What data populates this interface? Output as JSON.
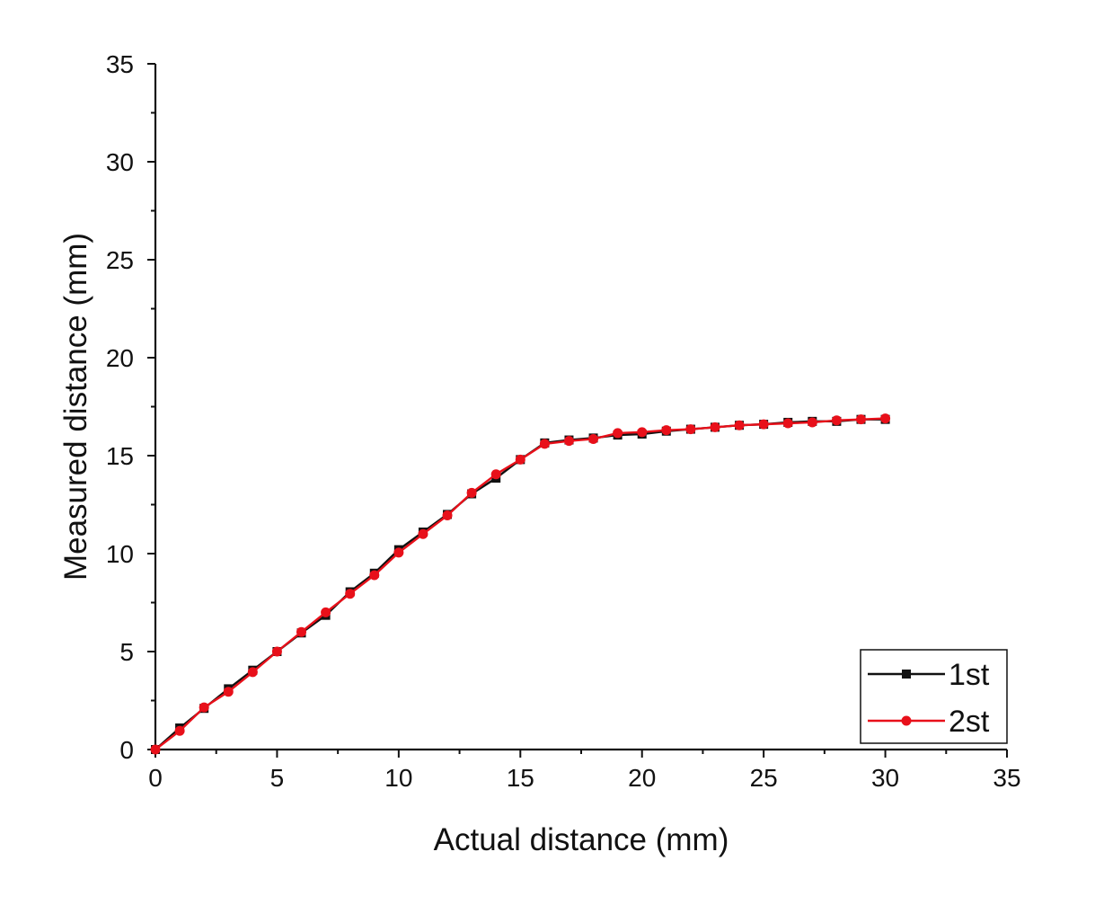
{
  "chart_data": {
    "type": "line",
    "title": "",
    "xlabel": "Actual distance (mm)",
    "ylabel": "Measured distance (mm)",
    "xlim": [
      0,
      35
    ],
    "ylim": [
      0,
      35
    ],
    "x_ticks": [
      "0",
      "5",
      "10",
      "15",
      "20",
      "25",
      "30",
      "35"
    ],
    "y_ticks": [
      "0",
      "5",
      "10",
      "15",
      "20",
      "25",
      "30",
      "35"
    ],
    "grid": false,
    "legend_position": "bottom-right",
    "series": [
      {
        "name": "1st",
        "color": "#111111",
        "marker": "square",
        "x": [
          0,
          1,
          2,
          3,
          4,
          5,
          6,
          7,
          8,
          9,
          10,
          11,
          12,
          13,
          14,
          15,
          16,
          17,
          18,
          19,
          20,
          21,
          22,
          23,
          24,
          25,
          26,
          27,
          28,
          29,
          30
        ],
        "y": [
          0,
          1.1,
          2.1,
          3.1,
          4.05,
          5.0,
          5.95,
          6.85,
          8.05,
          9.0,
          10.2,
          11.1,
          12.0,
          13.05,
          13.85,
          14.8,
          15.65,
          15.8,
          15.9,
          16.05,
          16.1,
          16.25,
          16.35,
          16.45,
          16.55,
          16.6,
          16.7,
          16.75,
          16.75,
          16.85,
          16.85
        ]
      },
      {
        "name": "2st",
        "color": "#e8101a",
        "marker": "circle",
        "x": [
          0,
          1,
          2,
          3,
          4,
          5,
          6,
          7,
          8,
          9,
          10,
          11,
          12,
          13,
          14,
          15,
          16,
          17,
          18,
          19,
          20,
          21,
          22,
          23,
          24,
          25,
          26,
          27,
          28,
          29,
          30
        ],
        "y": [
          0,
          0.95,
          2.15,
          2.95,
          3.95,
          5.0,
          6.0,
          7.0,
          7.95,
          8.9,
          10.05,
          11.0,
          11.95,
          13.1,
          14.05,
          14.8,
          15.6,
          15.75,
          15.85,
          16.15,
          16.2,
          16.3,
          16.35,
          16.45,
          16.55,
          16.6,
          16.65,
          16.7,
          16.8,
          16.85,
          16.9
        ]
      }
    ]
  }
}
